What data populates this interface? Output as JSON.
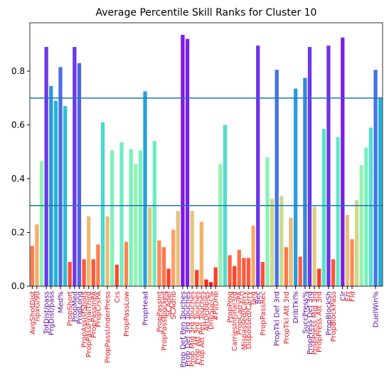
{
  "chart_data": {
    "type": "bar",
    "title": "Average Percentile Skill Ranks for Cluster 10",
    "categories": [
      "AvgShotDist",
      "npxG/90",
      null,
      "TotDist/pass",
      "PrgDist/pass",
      null,
      "Med%",
      null,
      "PropShort",
      "PropMed",
      "PropLong",
      "PropAssistShots",
      "PropPassFinalThird",
      "PropPassInPA",
      "PropCrsPA",
      null,
      "PropPassUnderPress",
      null,
      "Crs",
      null,
      "PropPassLow",
      null,
      null,
      null,
      "PropHead",
      null,
      null,
      "PropPassInt",
      "PropPassBlocked",
      "SCAdef",
      "SCAdrib",
      null,
      "Prop Def Pen Touches",
      "Prop Def 3rd Touches",
      "Prop Mid 3rd Touches",
      "Prop Att 3rd Touches",
      "Prop Att Pen Touches",
      "AttDribbles",
      "DribSucc%",
      "#Pl/Drib",
      null,
      null,
      "PropProg",
      "CarriesInFinal3rd",
      "PropCarryPA",
      "Mispassed/Carry",
      "Dispossed/Carry",
      "Targ",
      "Rec",
      "PropPassRec",
      null,
      null,
      "PropTkl Def 3rd",
      null,
      "PropTkl Att 3rd",
      null,
      "DribTkl%",
      null,
      "SuccPress%",
      "PropPress Def 3rd",
      "PropPress Mid 3rd",
      "PropPress Att 3rd",
      null,
      "PropBlockSh",
      "PropBlockPass",
      null,
      "Clr",
      "Err",
      "Fld",
      null,
      null,
      null,
      null,
      "DuelWin%",
      null
    ],
    "values": [
      0.15,
      0.23,
      0.465,
      0.89,
      0.745,
      0.69,
      0.815,
      0.67,
      0.09,
      0.89,
      0.83,
      0.1,
      0.26,
      0.1,
      0.155,
      0.61,
      0.26,
      0.505,
      0.08,
      0.535,
      0.165,
      0.51,
      0.455,
      0.505,
      0.725,
      0.295,
      0.54,
      0.17,
      0.145,
      0.065,
      0.21,
      0.28,
      0.935,
      0.92,
      0.28,
      0.06,
      0.24,
      0.025,
      0.015,
      0.07,
      0.455,
      0.6,
      0.115,
      0.075,
      0.135,
      0.105,
      0.105,
      0.225,
      0.895,
      0.09,
      0.48,
      0.325,
      0.805,
      0.335,
      0.145,
      0.255,
      0.735,
      0.11,
      0.775,
      0.89,
      0.295,
      0.065,
      0.585,
      0.895,
      0.1,
      0.555,
      0.925,
      0.265,
      0.175,
      0.32,
      0.45,
      0.515,
      0.59,
      0.805,
      0.7
    ],
    "colormap": "rainbow",
    "ylim": [
      0,
      0.98
    ],
    "yticks": [
      {
        "value": 0,
        "label": "0.0"
      },
      {
        "value": 0.2,
        "label": "0.2"
      },
      {
        "value": 0.4,
        "label": "0.4"
      },
      {
        "value": 0.6,
        "label": "0.6"
      },
      {
        "value": 0.8,
        "label": "0.8"
      }
    ],
    "hlines": [
      0.7,
      0.3
    ],
    "hline_color": "#1f77b4",
    "low_label_color": "#e8141c",
    "high_label_color": "#5a0a9e"
  }
}
